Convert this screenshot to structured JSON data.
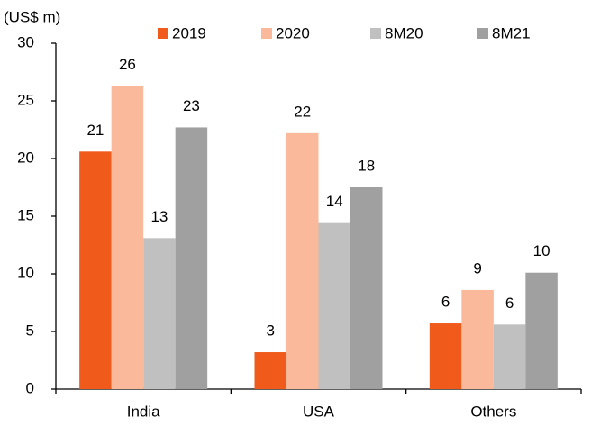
{
  "chart_data": {
    "type": "bar",
    "y_label": "(US$ m)",
    "categories": [
      "India",
      "USA",
      "Others"
    ],
    "series": [
      {
        "name": "2019",
        "color": "#f05a1a",
        "values": [
          20.6,
          3.2,
          5.7
        ],
        "value_labels": [
          "21",
          "3",
          "6"
        ]
      },
      {
        "name": "2020",
        "color": "#f9b99a",
        "values": [
          26.3,
          22.2,
          8.6
        ],
        "value_labels": [
          "26",
          "22",
          "9"
        ]
      },
      {
        "name": "8M20",
        "color": "#c0c0c0",
        "values": [
          13.1,
          14.4,
          5.6
        ],
        "value_labels": [
          "13",
          "14",
          "6"
        ]
      },
      {
        "name": "8M21",
        "color": "#a0a0a0",
        "values": [
          22.7,
          17.5,
          10.1
        ],
        "value_labels": [
          "23",
          "18",
          "10"
        ]
      }
    ],
    "ylim": [
      0,
      30
    ],
    "yticks": [
      0,
      5,
      10,
      15,
      20,
      25,
      30
    ],
    "grid": false,
    "legend": "top"
  }
}
